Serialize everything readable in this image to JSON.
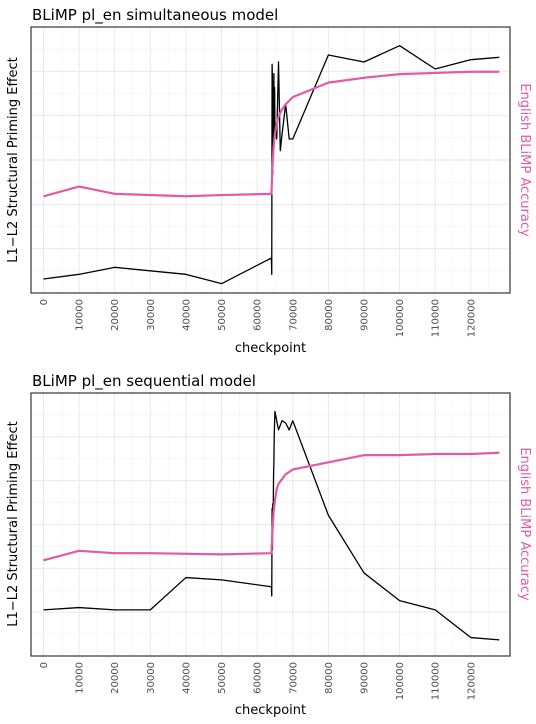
{
  "colors": {
    "priming": "#000000",
    "accuracy": "#e05aa8",
    "grid": "#e6e6e6"
  },
  "chart_data": [
    {
      "type": "line",
      "title": "BLiMP pl_en simultaneous model",
      "xlabel": "checkpoint",
      "ylabel": "L1−L2 Structural Priming Effect",
      "ylabel_right": "English BLiMP Accuracy",
      "xticks": [
        "0",
        "10000",
        "20000",
        "30000",
        "40000",
        "50000",
        "60000",
        "70000",
        "80000",
        "90000",
        "100000",
        "110000",
        "120000"
      ],
      "xlim": [
        -3500,
        131000
      ],
      "y_axis_tick_labels_shown": false,
      "grid": true,
      "series": [
        {
          "axis": "left",
          "color": "#000000",
          "x": [
            0,
            10000,
            20000,
            40000,
            50000,
            64000,
            64100,
            64200,
            64300,
            64400,
            64500,
            64600,
            64700,
            64800,
            64900,
            65000,
            65500,
            66000,
            66500,
            67000,
            68000,
            69000,
            70000,
            80000,
            90000,
            100000,
            110000,
            120000,
            128000
          ],
          "y": [
            0.0,
            0.02,
            0.05,
            0.02,
            -0.02,
            0.09,
            0.02,
            0.92,
            0.85,
            0.45,
            0.7,
            0.55,
            0.88,
            0.6,
            0.82,
            0.66,
            0.6,
            0.93,
            0.55,
            0.62,
            0.75,
            0.6,
            0.6,
            0.96,
            0.93,
            1.0,
            0.9,
            0.94,
            0.95
          ]
        },
        {
          "axis": "right",
          "color": "#e05aa8",
          "x": [
            0,
            10000,
            20000,
            40000,
            50000,
            64000,
            64300,
            64600,
            65000,
            65500,
            66000,
            67000,
            68000,
            70000,
            80000,
            90000,
            100000,
            110000,
            120000,
            128000
          ],
          "y": [
            0.4,
            0.44,
            0.41,
            0.4,
            0.405,
            0.41,
            0.52,
            0.6,
            0.66,
            0.7,
            0.73,
            0.76,
            0.78,
            0.81,
            0.87,
            0.89,
            0.905,
            0.91,
            0.915,
            0.915
          ]
        }
      ]
    },
    {
      "type": "line",
      "title": "BLiMP pl_en sequential model",
      "xlabel": "checkpoint",
      "ylabel": "L1−L2 Structural Priming Effect",
      "ylabel_right": "English BLiMP Accuracy",
      "xticks": [
        "0",
        "10000",
        "20000",
        "30000",
        "40000",
        "50000",
        "60000",
        "70000",
        "80000",
        "90000",
        "100000",
        "110000",
        "120000"
      ],
      "xlim": [
        -3500,
        131000
      ],
      "y_axis_tick_labels_shown": false,
      "grid": true,
      "series": [
        {
          "axis": "left",
          "color": "#000000",
          "x": [
            0,
            10000,
            20000,
            30000,
            40000,
            50000,
            64000,
            64100,
            64200,
            64300,
            64400,
            64500,
            64600,
            64700,
            64800,
            65000,
            66000,
            67000,
            68000,
            69000,
            70000,
            80000,
            90000,
            100000,
            110000,
            120000,
            128000
          ],
          "y": [
            0.14,
            0.15,
            0.14,
            0.14,
            0.28,
            0.27,
            0.24,
            0.2,
            0.58,
            0.4,
            0.6,
            0.52,
            0.72,
            0.78,
            0.9,
            1.0,
            0.92,
            0.96,
            0.95,
            0.92,
            0.96,
            0.55,
            0.3,
            0.18,
            0.14,
            0.02,
            0.01
          ]
        },
        {
          "axis": "right",
          "color": "#e05aa8",
          "x": [
            0,
            10000,
            20000,
            30000,
            50000,
            64000,
            64300,
            64600,
            65000,
            65500,
            66000,
            67000,
            68000,
            70000,
            80000,
            90000,
            100000,
            110000,
            120000,
            128000
          ],
          "y": [
            0.4,
            0.44,
            0.43,
            0.43,
            0.425,
            0.43,
            0.52,
            0.6,
            0.65,
            0.7,
            0.72,
            0.74,
            0.76,
            0.78,
            0.81,
            0.84,
            0.84,
            0.845,
            0.845,
            0.85
          ]
        }
      ]
    }
  ]
}
